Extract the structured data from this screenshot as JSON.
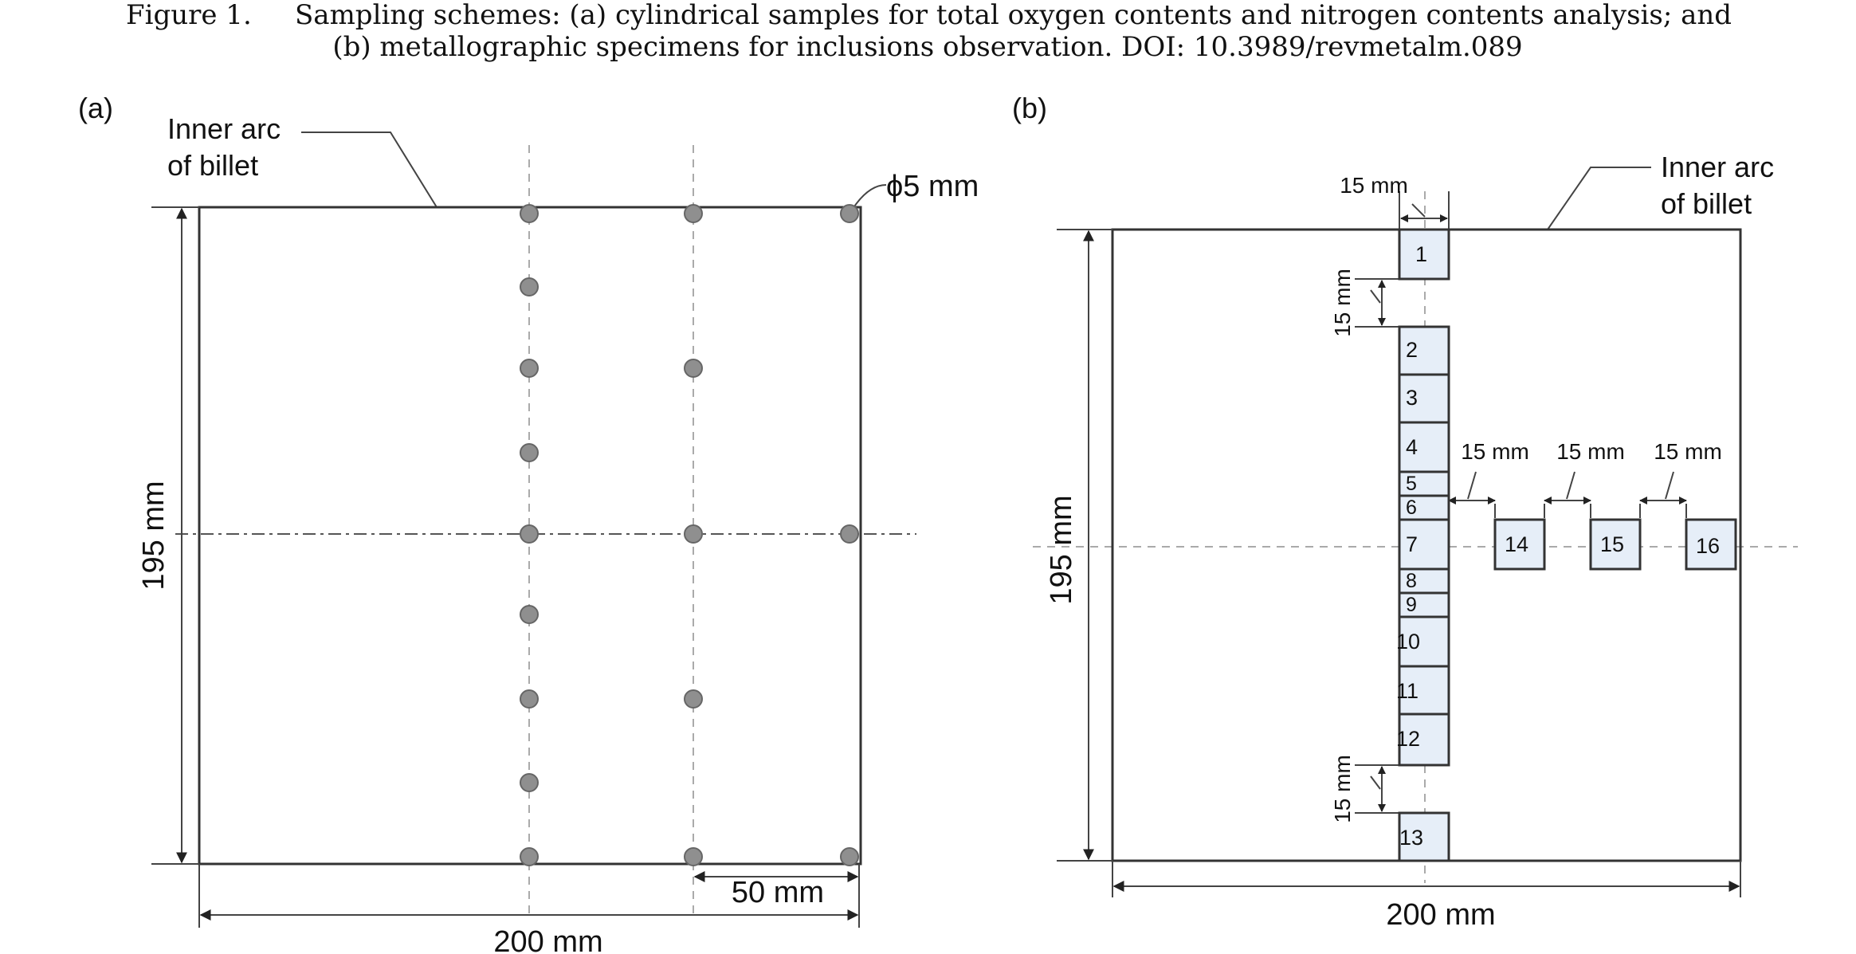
{
  "caption": {
    "lead": "Figure 1.",
    "line1": "Sampling schemes: (a) cylindrical samples for total oxygen contents and nitrogen contents analysis; and",
    "line2": "(b) metallographic specimens for inclusions observation. DOI: 10.3989/revmetalm.089"
  },
  "panel_a": {
    "tag": "(a)",
    "inner_arc": [
      "Inner arc",
      "of billet"
    ],
    "hole_diameter": "ϕ5 mm",
    "height_dim": "195 mm",
    "width_dim": "200 mm",
    "spacing_dim": "50 mm"
  },
  "panel_b": {
    "tag": "(b)",
    "inner_arc": [
      "Inner arc",
      "of billet"
    ],
    "height_dim": "195 mm",
    "width_dim": "200 mm",
    "gap_dim": "15 mm",
    "specimens": [
      "1",
      "2",
      "3",
      "4",
      "5",
      "6",
      "7",
      "8",
      "9",
      "10",
      "11",
      "12",
      "13",
      "14",
      "15",
      "16"
    ]
  },
  "colors": {
    "specimen_fill": "#e6eef8",
    "hole_fill": "#8f8f8f",
    "outline": "#333333"
  }
}
